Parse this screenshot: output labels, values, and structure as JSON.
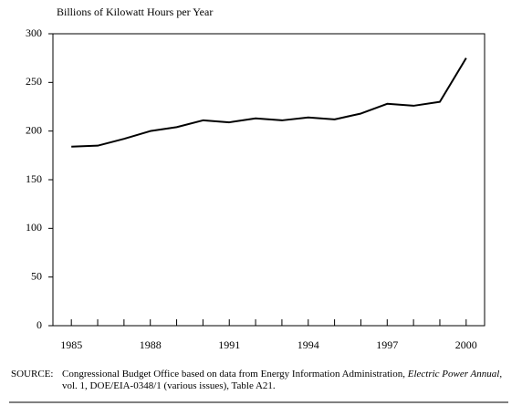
{
  "chart_data": {
    "type": "line",
    "title": "Billions of Kilowatt Hours per Year",
    "x": [
      1985,
      1986,
      1987,
      1988,
      1989,
      1990,
      1991,
      1992,
      1993,
      1994,
      1995,
      1996,
      1997,
      1998,
      1999,
      2000
    ],
    "series": [
      {
        "color": "#000000",
        "values": [
          184,
          185,
          192,
          200,
          204,
          211,
          209,
          213,
          211,
          214,
          212,
          218,
          228,
          226,
          230,
          275
        ]
      }
    ],
    "xlim": [
      1984.3,
      2000.7
    ],
    "xticks": [
      1985,
      1988,
      1991,
      1994,
      1997,
      2000
    ],
    "xminor_ticks": [
      1985,
      1986,
      1987,
      1988,
      1989,
      1990,
      1991,
      1992,
      1993,
      1994,
      1995,
      1996,
      1997,
      1998,
      1999,
      2000
    ],
    "ylim": [
      0,
      300
    ],
    "yticks": [
      0,
      50,
      100,
      150,
      200,
      250,
      300
    ],
    "grid": false
  },
  "note": {
    "label": "SOURCE:",
    "text": "Congressional Budget Office based on data from Energy Information Administration,",
    "italic": "Electric Power Annual,",
    "text2": "vol. 1, DOE/EIA-0348/1 (various issues), Table A21."
  }
}
